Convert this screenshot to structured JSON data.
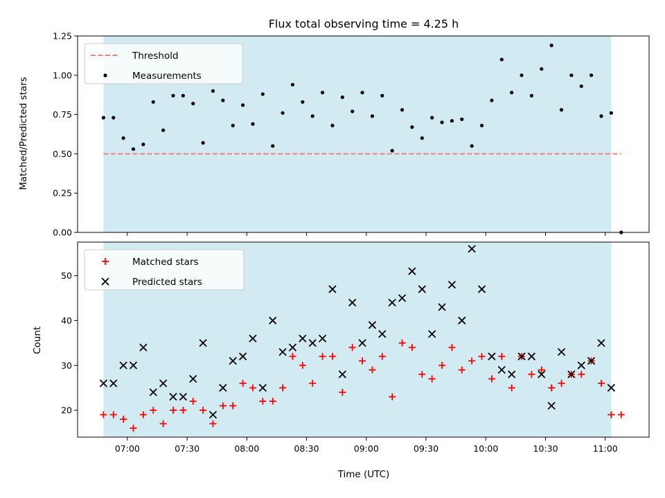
{
  "chart_data": [
    {
      "type": "scatter",
      "title": "Flux total observing time = 4.25 h",
      "ylabel": "Matched/Predicted stars",
      "ylim": [
        0,
        1.25
      ],
      "yticks": [
        0,
        0.25,
        0.5,
        0.75,
        1.0,
        1.25
      ],
      "ytick_labels": [
        "0.00",
        "0.25",
        "0.50",
        "0.75",
        "1.00",
        "1.25"
      ],
      "shaded_span": [
        "06:48",
        "11:03"
      ],
      "shaded_color": "#add8e6",
      "legend_location": "upper left",
      "threshold": {
        "name": "Threshold",
        "value": 0.5,
        "x_range": [
          "06:48",
          "11:08"
        ],
        "color": "#f08080",
        "style": "dashed"
      },
      "series": [
        {
          "name": "Measurements",
          "marker": "dot",
          "color": "#000000",
          "x": [
            "06:48",
            "06:53",
            "06:58",
            "07:03",
            "07:08",
            "07:13",
            "07:18",
            "07:23",
            "07:28",
            "07:33",
            "07:38",
            "07:43",
            "07:48",
            "07:53",
            "07:58",
            "08:03",
            "08:08",
            "08:13",
            "08:18",
            "08:23",
            "08:28",
            "08:33",
            "08:38",
            "08:43",
            "08:48",
            "08:53",
            "08:58",
            "09:03",
            "09:08",
            "09:13",
            "09:18",
            "09:23",
            "09:28",
            "09:33",
            "09:38",
            "09:43",
            "09:48",
            "09:53",
            "09:58",
            "10:03",
            "10:08",
            "10:13",
            "10:18",
            "10:23",
            "10:28",
            "10:33",
            "10:38",
            "10:43",
            "10:48",
            "10:53",
            "10:58",
            "11:03",
            "11:08"
          ],
          "y": [
            0.73,
            0.73,
            0.6,
            0.53,
            0.56,
            0.83,
            0.65,
            0.87,
            0.87,
            0.82,
            0.57,
            0.9,
            0.84,
            0.68,
            0.81,
            0.69,
            0.88,
            0.55,
            0.76,
            0.94,
            0.83,
            0.74,
            0.89,
            0.68,
            0.86,
            0.77,
            0.89,
            0.74,
            0.87,
            0.52,
            0.78,
            0.67,
            0.6,
            0.73,
            0.7,
            0.71,
            0.72,
            0.55,
            0.68,
            0.84,
            1.1,
            0.89,
            1.0,
            0.87,
            1.04,
            1.19,
            0.78,
            1.0,
            0.93,
            1.0,
            0.74,
            0.76,
            0.0
          ]
        }
      ]
    },
    {
      "type": "scatter",
      "xlabel": "Time (UTC)",
      "ylabel": "Count",
      "ylim": [
        14,
        57.5
      ],
      "yticks": [
        20,
        30,
        40,
        50
      ],
      "ytick_labels": [
        "20",
        "30",
        "40",
        "50"
      ],
      "xticks": [
        "07:00",
        "07:30",
        "08:00",
        "08:30",
        "09:00",
        "09:30",
        "10:00",
        "10:30",
        "11:00"
      ],
      "shaded_span": [
        "06:48",
        "11:03"
      ],
      "shaded_color": "#add8e6",
      "legend_location": "upper left",
      "series": [
        {
          "name": "Matched stars",
          "marker": "plus",
          "color": "#ff0000",
          "x": [
            "06:48",
            "06:53",
            "06:58",
            "07:03",
            "07:08",
            "07:13",
            "07:18",
            "07:23",
            "07:28",
            "07:33",
            "07:38",
            "07:43",
            "07:48",
            "07:53",
            "07:58",
            "08:03",
            "08:08",
            "08:13",
            "08:18",
            "08:23",
            "08:28",
            "08:33",
            "08:38",
            "08:43",
            "08:48",
            "08:53",
            "08:58",
            "09:03",
            "09:08",
            "09:13",
            "09:18",
            "09:23",
            "09:28",
            "09:33",
            "09:38",
            "09:43",
            "09:48",
            "09:53",
            "09:58",
            "10:03",
            "10:08",
            "10:13",
            "10:18",
            "10:23",
            "10:28",
            "10:33",
            "10:38",
            "10:43",
            "10:48",
            "10:53",
            "10:58",
            "11:03",
            "11:08"
          ],
          "y": [
            19,
            19,
            18,
            16,
            19,
            20,
            17,
            20,
            20,
            22,
            20,
            17,
            21,
            21,
            26,
            25,
            22,
            22,
            25,
            32,
            30,
            26,
            32,
            32,
            24,
            34,
            31,
            29,
            32,
            23,
            35,
            34,
            28,
            27,
            30,
            34,
            29,
            31,
            32,
            27,
            32,
            25,
            32,
            28,
            29,
            25,
            26,
            28,
            28,
            31,
            26,
            19,
            19
          ]
        },
        {
          "name": "Predicted stars",
          "marker": "x",
          "color": "#000000",
          "x": [
            "06:48",
            "06:53",
            "06:58",
            "07:03",
            "07:08",
            "07:13",
            "07:18",
            "07:23",
            "07:28",
            "07:33",
            "07:38",
            "07:43",
            "07:48",
            "07:53",
            "07:58",
            "08:03",
            "08:08",
            "08:13",
            "08:18",
            "08:23",
            "08:28",
            "08:33",
            "08:38",
            "08:43",
            "08:48",
            "08:53",
            "08:58",
            "09:03",
            "09:08",
            "09:13",
            "09:18",
            "09:23",
            "09:28",
            "09:33",
            "09:38",
            "09:43",
            "09:48",
            "09:53",
            "09:58",
            "10:03",
            "10:08",
            "10:13",
            "10:18",
            "10:23",
            "10:28",
            "10:33",
            "10:38",
            "10:43",
            "10:48",
            "10:53",
            "10:58",
            "11:03"
          ],
          "y": [
            26,
            26,
            30,
            30,
            34,
            24,
            26,
            23,
            23,
            27,
            35,
            19,
            25,
            31,
            32,
            36,
            25,
            40,
            33,
            34,
            36,
            35,
            36,
            47,
            28,
            44,
            35,
            39,
            37,
            44,
            45,
            51,
            47,
            37,
            43,
            48,
            40,
            56,
            47,
            32,
            29,
            28,
            32,
            32,
            28,
            21,
            33,
            28,
            30,
            31,
            35,
            25
          ]
        }
      ]
    }
  ]
}
